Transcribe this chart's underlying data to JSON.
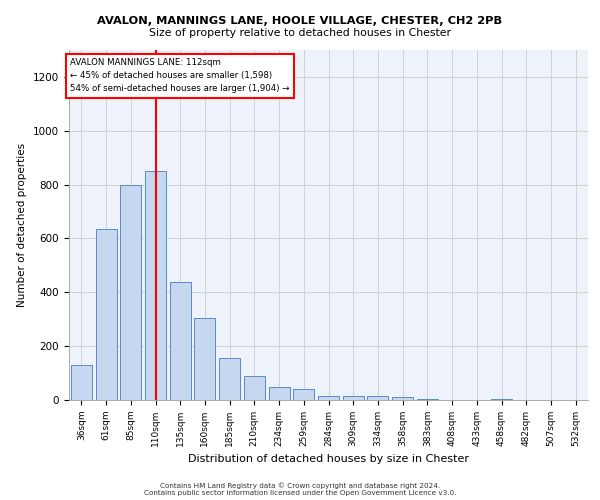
{
  "title1": "AVALON, MANNINGS LANE, HOOLE VILLAGE, CHESTER, CH2 2PB",
  "title2": "Size of property relative to detached houses in Chester",
  "xlabel": "Distribution of detached houses by size in Chester",
  "ylabel": "Number of detached properties",
  "bar_color": "#c5d8f0",
  "bar_edge_color": "#5b8ac9",
  "bin_values": [
    130,
    635,
    800,
    850,
    440,
    305,
    155,
    90,
    50,
    40,
    15,
    15,
    15,
    10,
    5,
    0,
    0,
    5,
    0,
    0,
    0
  ],
  "bar_labels": [
    "36sqm",
    "61sqm",
    "85sqm",
    "110sqm",
    "135sqm",
    "160sqm",
    "185sqm",
    "210sqm",
    "234sqm",
    "259sqm",
    "284sqm",
    "309sqm",
    "334sqm",
    "358sqm",
    "383sqm",
    "408sqm",
    "433sqm",
    "458sqm",
    "482sqm",
    "507sqm",
    "532sqm"
  ],
  "x_positions": [
    0,
    1,
    2,
    3,
    4,
    5,
    6,
    7,
    8,
    9,
    10,
    11,
    12,
    13,
    14,
    15,
    16,
    17,
    18,
    19,
    20
  ],
  "ylim": [
    0,
    1300
  ],
  "yticks": [
    0,
    200,
    400,
    600,
    800,
    1000,
    1200
  ],
  "red_line_idx": 3,
  "annotation_text": "AVALON MANNINGS LANE: 112sqm\n← 45% of detached houses are smaller (1,598)\n54% of semi-detached houses are larger (1,904) →",
  "footer_text": "Contains HM Land Registry data © Crown copyright and database right 2024.\nContains public sector information licensed under the Open Government Licence v3.0.",
  "grid_color": "#d0d0d0",
  "background_color": "#eef2fa"
}
